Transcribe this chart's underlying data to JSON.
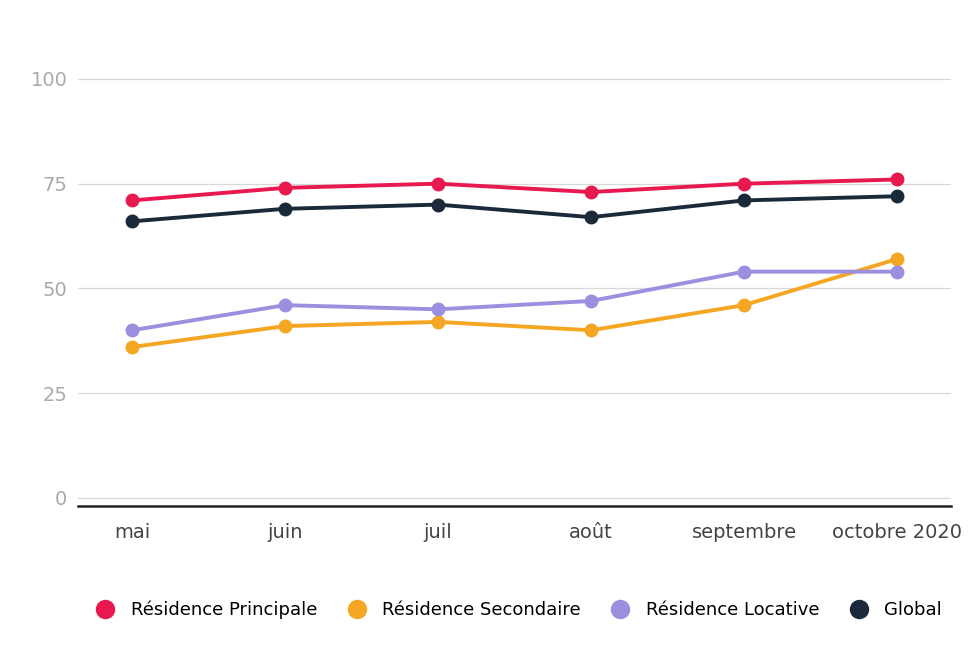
{
  "months": [
    "mai",
    "juin",
    "juil",
    "août",
    "septembre",
    "octobre 2020"
  ],
  "series": {
    "Résidence Principale": {
      "values": [
        71,
        74,
        75,
        73,
        75,
        76
      ],
      "color": "#e8194e",
      "linewidth": 2.8,
      "markersize": 9
    },
    "Résidence Secondaire": {
      "values": [
        36,
        41,
        42,
        40,
        46,
        57
      ],
      "color": "#f5a623",
      "linewidth": 2.8,
      "markersize": 9
    },
    "Résidence Locative": {
      "values": [
        40,
        46,
        45,
        47,
        54,
        54
      ],
      "color": "#9b8fe0",
      "linewidth": 2.8,
      "markersize": 9
    },
    "Global": {
      "values": [
        66,
        69,
        70,
        67,
        71,
        72
      ],
      "color": "#1b2a3b",
      "linewidth": 2.8,
      "markersize": 9
    }
  },
  "yticks": [
    0,
    25,
    50,
    75,
    100
  ],
  "ylim": [
    -2,
    108
  ],
  "background_color": "#ffffff",
  "tick_color": "#aaaaaa",
  "grid_color": "#d8d8d8",
  "legend_order": [
    "Résidence Principale",
    "Résidence Secondaire",
    "Résidence Locative",
    "Global"
  ],
  "legend_fontsize": 13,
  "tick_fontsize": 14,
  "xtick_fontsize": 14
}
